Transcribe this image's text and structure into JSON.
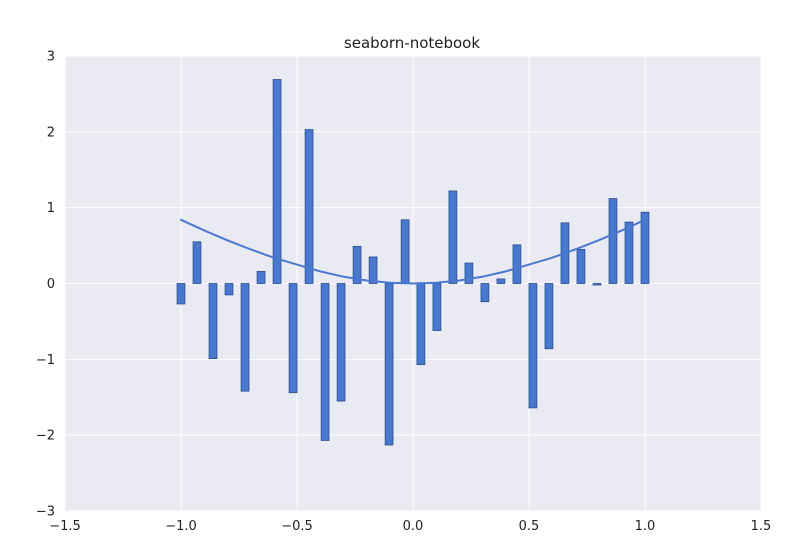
{
  "chart_data": {
    "type": "bar",
    "title": "seaborn-notebook",
    "xlabel": "",
    "ylabel": "",
    "xlim": [
      -1.5,
      1.5
    ],
    "ylim": [
      -3,
      3
    ],
    "xticks": [
      -1.5,
      -1.0,
      -0.5,
      0.0,
      0.5,
      1.0,
      1.5
    ],
    "xtick_labels": [
      "−1.5",
      "−1.0",
      "−0.5",
      "0.0",
      "0.5",
      "1.0",
      "1.5"
    ],
    "yticks": [
      -3,
      -2,
      -1,
      0,
      1,
      2,
      3
    ],
    "ytick_labels": [
      "−3",
      "−2",
      "−1",
      "0",
      "1",
      "2",
      "3"
    ],
    "grid": true,
    "bar_width": 0.034,
    "series": [
      {
        "type": "bar",
        "x": [
          -1.0,
          -0.931,
          -0.862,
          -0.793,
          -0.724,
          -0.655,
          -0.586,
          -0.517,
          -0.448,
          -0.379,
          -0.31,
          -0.241,
          -0.172,
          -0.103,
          -0.034,
          0.034,
          0.103,
          0.172,
          0.241,
          0.31,
          0.379,
          0.448,
          0.517,
          0.586,
          0.655,
          0.724,
          0.793,
          0.862,
          0.931,
          1.0
        ],
        "values": [
          -0.27,
          0.55,
          -0.99,
          -0.15,
          -1.42,
          0.16,
          2.69,
          -1.44,
          2.03,
          -2.07,
          -1.55,
          0.49,
          0.35,
          -2.13,
          0.84,
          -1.07,
          -0.62,
          1.22,
          0.27,
          -0.24,
          0.06,
          0.51,
          -1.64,
          -0.86,
          0.8,
          0.45,
          -0.02,
          1.12,
          0.81,
          0.94
        ]
      },
      {
        "type": "line",
        "x": [
          -1.0,
          -0.9,
          -0.8,
          -0.7,
          -0.6,
          -0.5,
          -0.4,
          -0.3,
          -0.2,
          -0.1,
          0.0,
          0.1,
          0.2,
          0.3,
          0.4,
          0.5,
          0.6,
          0.7,
          0.8,
          0.9,
          1.0
        ],
        "values": [
          0.84,
          0.7,
          0.57,
          0.45,
          0.34,
          0.25,
          0.16,
          0.09,
          0.04,
          0.01,
          0.0,
          0.01,
          0.04,
          0.09,
          0.16,
          0.25,
          0.34,
          0.45,
          0.57,
          0.7,
          0.84
        ]
      }
    ],
    "colors": {
      "bar_fill": "#4878cf",
      "bar_edge": "#2c4f8a",
      "line": "#4878cf",
      "plot_bg": "#eaeaf2",
      "grid": "#ffffff"
    }
  }
}
